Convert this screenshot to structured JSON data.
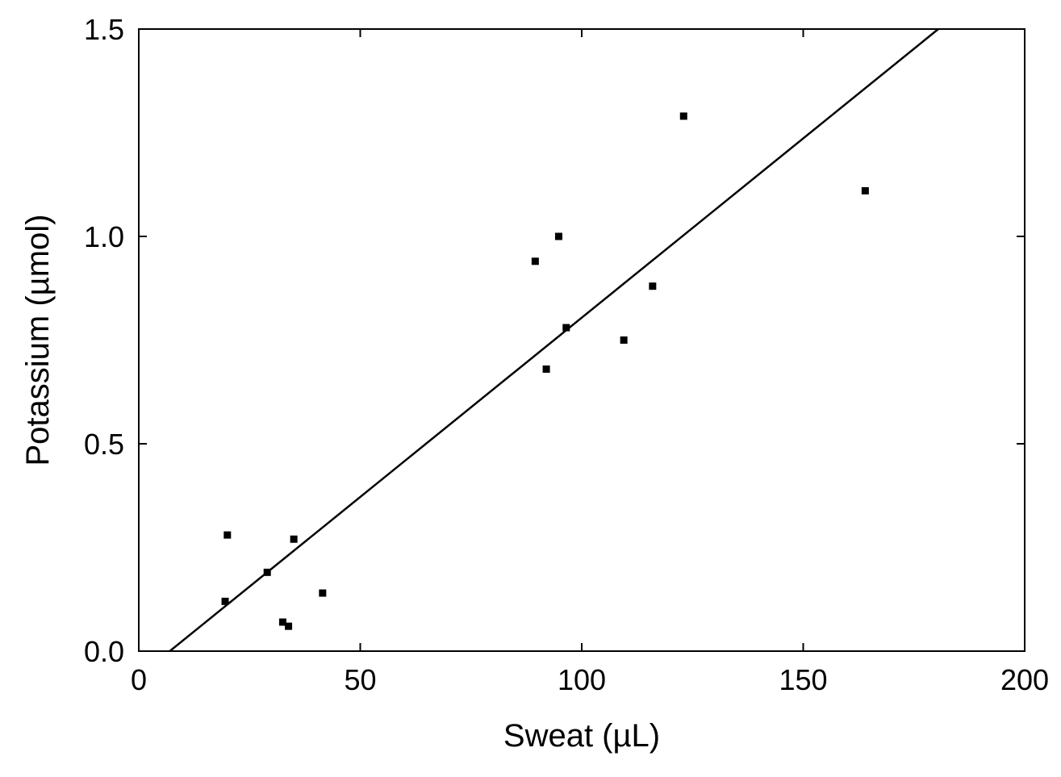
{
  "chart_data": {
    "type": "scatter",
    "title": "",
    "xlabel": "Sweat (µL)",
    "ylabel": "Potassium (µmol)",
    "xlim": [
      0,
      200
    ],
    "ylim": [
      0,
      1.5
    ],
    "x_ticks": [
      0,
      50,
      100,
      150,
      200
    ],
    "x_tick_labels": [
      "0",
      "50",
      "100",
      "150",
      "200"
    ],
    "y_ticks": [
      0,
      0.5,
      1.0,
      1.5
    ],
    "y_tick_labels": [
      "0.0",
      "0.5",
      "1.0",
      "1.5"
    ],
    "grid": false,
    "legend": "none",
    "series": [
      {
        "type": "scatter",
        "color": "#000000",
        "points": [
          {
            "x": 20.0,
            "y": 0.28
          },
          {
            "x": 19.5,
            "y": 0.12
          },
          {
            "x": 29.0,
            "y": 0.19
          },
          {
            "x": 32.5,
            "y": 0.07
          },
          {
            "x": 33.8,
            "y": 0.06
          },
          {
            "x": 35.0,
            "y": 0.27
          },
          {
            "x": 41.5,
            "y": 0.14
          },
          {
            "x": 89.5,
            "y": 0.94
          },
          {
            "x": 92.0,
            "y": 0.68
          },
          {
            "x": 94.8,
            "y": 1.0
          },
          {
            "x": 96.5,
            "y": 0.78
          },
          {
            "x": 109.5,
            "y": 0.75
          },
          {
            "x": 116.0,
            "y": 0.88
          },
          {
            "x": 123.0,
            "y": 1.29
          },
          {
            "x": 164.0,
            "y": 1.11
          }
        ]
      },
      {
        "type": "line",
        "color": "#000000",
        "points": [
          {
            "x": 7.0,
            "y": 0.0
          },
          {
            "x": 180.5,
            "y": 1.5
          }
        ]
      }
    ]
  }
}
